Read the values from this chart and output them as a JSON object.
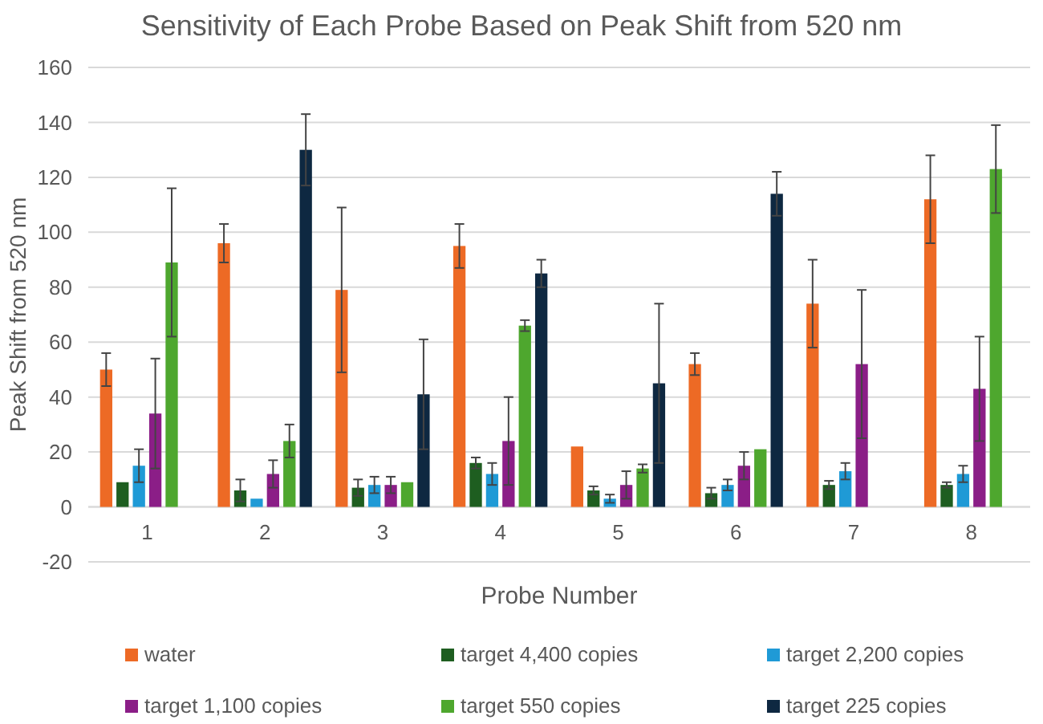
{
  "chart_data": {
    "type": "bar",
    "title": "Sensitivity of Each Probe Based on Peak Shift from 520 nm",
    "xlabel": "Probe Number",
    "ylabel": "Peak Shift from 520 nm",
    "categories": [
      "1",
      "2",
      "3",
      "4",
      "5",
      "6",
      "7",
      "8"
    ],
    "ylim": [
      -20,
      160
    ],
    "yticks": [
      -20,
      0,
      20,
      40,
      60,
      80,
      100,
      120,
      140,
      160
    ],
    "grid": "y",
    "legend": "bottom",
    "series": [
      {
        "name": "water",
        "color": "#ed6a25",
        "values": [
          50,
          96,
          79,
          95,
          22,
          52,
          74,
          112
        ],
        "errors": [
          6,
          7,
          30,
          8,
          null,
          4,
          16,
          16
        ]
      },
      {
        "name": "target 4,400 copies",
        "color": "#1e5e20",
        "values": [
          9,
          6,
          7,
          16,
          6,
          5,
          8,
          8
        ],
        "errors": [
          null,
          4,
          3,
          2,
          1.5,
          2,
          1.5,
          1
        ]
      },
      {
        "name": "target 2,200 copies",
        "color": "#1f9ad6",
        "values": [
          15,
          3,
          8,
          12,
          3,
          8,
          13,
          12
        ],
        "errors": [
          6,
          null,
          3,
          4,
          1.5,
          2,
          3,
          3
        ]
      },
      {
        "name": "target 1,100 copies",
        "color": "#8b1e87",
        "values": [
          34,
          12,
          8,
          24,
          8,
          15,
          52,
          43
        ],
        "errors": [
          20,
          5,
          3,
          16,
          5,
          5,
          27,
          19
        ]
      },
      {
        "name": "target 550 copies",
        "color": "#4ea72e",
        "values": [
          89,
          24,
          9,
          66,
          14,
          21,
          null,
          123
        ],
        "errors": [
          27,
          6,
          null,
          2,
          1.5,
          null,
          null,
          16
        ]
      },
      {
        "name": "target 225 copies",
        "color": "#0e2841",
        "values": [
          null,
          130,
          41,
          85,
          45,
          114,
          null,
          null
        ],
        "errors": [
          null,
          13,
          20,
          5,
          29,
          8,
          null,
          null
        ]
      }
    ]
  }
}
